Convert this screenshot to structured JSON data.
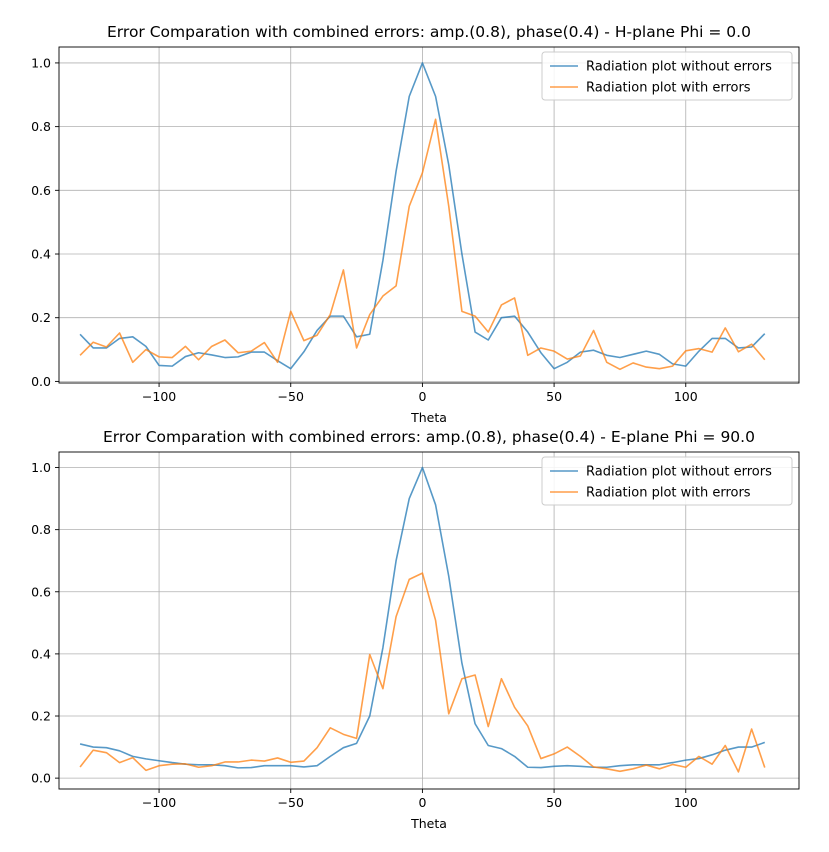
{
  "chart_data": [
    {
      "type": "line",
      "title": "Error Comparation with combined errors: amp.(0.8), phase(0.4) - H-plane Phi = 0.0",
      "xlabel": "Theta",
      "ylabel": "",
      "xlim": [
        -138,
        143
      ],
      "ylim": [
        -0.005,
        1.05
      ],
      "xticks": [
        -100,
        -50,
        0,
        50,
        100
      ],
      "xtick_labels": [
        "−100",
        "−50",
        "0",
        "50",
        "100"
      ],
      "yticks": [
        0.0,
        0.2,
        0.4,
        0.6,
        0.8,
        1.0
      ],
      "ytick_labels": [
        "0.0",
        "0.2",
        "0.4",
        "0.6",
        "0.8",
        "1.0"
      ],
      "grid": true,
      "legend_position": "top-right",
      "x": [
        -130,
        -125,
        -120,
        -115,
        -110,
        -105,
        -100,
        -95,
        -90,
        -85,
        -80,
        -75,
        -70,
        -65,
        -60,
        -55,
        -50,
        -45,
        -40,
        -35,
        -30,
        -25,
        -20,
        -15,
        -10,
        -5,
        0,
        5,
        10,
        15,
        20,
        25,
        30,
        35,
        40,
        45,
        50,
        55,
        60,
        65,
        70,
        75,
        80,
        85,
        90,
        95,
        100,
        105,
        110,
        115,
        120,
        125,
        130
      ],
      "series": [
        {
          "name": "Radiation plot without errors",
          "color": "#1f77b4",
          "values": [
            0.148,
            0.105,
            0.105,
            0.135,
            0.14,
            0.11,
            0.05,
            0.048,
            0.078,
            0.09,
            0.083,
            0.075,
            0.077,
            0.092,
            0.092,
            0.065,
            0.04,
            0.093,
            0.16,
            0.205,
            0.205,
            0.14,
            0.148,
            0.38,
            0.66,
            0.895,
            1.0,
            0.895,
            0.68,
            0.4,
            0.155,
            0.13,
            0.2,
            0.205,
            0.155,
            0.09,
            0.04,
            0.06,
            0.092,
            0.098,
            0.082,
            0.075,
            0.085,
            0.095,
            0.085,
            0.055,
            0.048,
            0.095,
            0.135,
            0.135,
            0.105,
            0.108,
            0.15
          ]
        },
        {
          "name": "Radiation plot with errors",
          "color": "#ff7f0e",
          "values": [
            0.082,
            0.123,
            0.108,
            0.152,
            0.06,
            0.1,
            0.077,
            0.075,
            0.11,
            0.068,
            0.11,
            0.13,
            0.09,
            0.095,
            0.122,
            0.06,
            0.22,
            0.128,
            0.145,
            0.21,
            0.35,
            0.105,
            0.21,
            0.268,
            0.3,
            0.55,
            0.655,
            0.823,
            0.55,
            0.22,
            0.205,
            0.155,
            0.24,
            0.262,
            0.082,
            0.105,
            0.095,
            0.07,
            0.08,
            0.16,
            0.06,
            0.038,
            0.058,
            0.045,
            0.04,
            0.048,
            0.096,
            0.103,
            0.092,
            0.168,
            0.093,
            0.117,
            0.068
          ]
        }
      ]
    },
    {
      "type": "line",
      "title": "Error Comparation with combined errors: amp.(0.8), phase(0.4) - E-plane Phi = 90.0",
      "xlabel": "Theta",
      "ylabel": "",
      "xlim": [
        -138,
        143
      ],
      "ylim": [
        -0.035,
        1.05
      ],
      "xticks": [
        -100,
        -50,
        0,
        50,
        100
      ],
      "xtick_labels": [
        "−100",
        "−50",
        "0",
        "50",
        "100"
      ],
      "yticks": [
        0.0,
        0.2,
        0.4,
        0.6,
        0.8,
        1.0
      ],
      "ytick_labels": [
        "0.0",
        "0.2",
        "0.4",
        "0.6",
        "0.8",
        "1.0"
      ],
      "grid": true,
      "legend_position": "top-right",
      "x": [
        -130,
        -125,
        -120,
        -115,
        -110,
        -105,
        -100,
        -95,
        -90,
        -85,
        -80,
        -75,
        -70,
        -65,
        -60,
        -55,
        -50,
        -45,
        -40,
        -35,
        -30,
        -25,
        -20,
        -15,
        -10,
        -5,
        0,
        5,
        10,
        15,
        20,
        25,
        30,
        35,
        40,
        45,
        50,
        55,
        60,
        65,
        70,
        75,
        80,
        85,
        90,
        95,
        100,
        105,
        110,
        115,
        120,
        125,
        130
      ],
      "series": [
        {
          "name": "Radiation plot without errors",
          "color": "#1f77b4",
          "values": [
            0.11,
            0.1,
            0.098,
            0.088,
            0.07,
            0.062,
            0.056,
            0.05,
            0.045,
            0.043,
            0.043,
            0.04,
            0.033,
            0.034,
            0.04,
            0.04,
            0.04,
            0.036,
            0.04,
            0.07,
            0.098,
            0.112,
            0.2,
            0.42,
            0.7,
            0.9,
            1.0,
            0.88,
            0.65,
            0.37,
            0.175,
            0.105,
            0.095,
            0.07,
            0.035,
            0.034,
            0.038,
            0.04,
            0.038,
            0.035,
            0.035,
            0.04,
            0.043,
            0.043,
            0.043,
            0.05,
            0.058,
            0.063,
            0.075,
            0.09,
            0.1,
            0.1,
            0.115
          ]
        },
        {
          "name": "Radiation plot with errors",
          "color": "#ff7f0e",
          "values": [
            0.036,
            0.09,
            0.082,
            0.05,
            0.066,
            0.025,
            0.04,
            0.045,
            0.046,
            0.035,
            0.04,
            0.052,
            0.052,
            0.058,
            0.055,
            0.065,
            0.051,
            0.055,
            0.098,
            0.162,
            0.141,
            0.128,
            0.398,
            0.288,
            0.52,
            0.64,
            0.66,
            0.508,
            0.207,
            0.32,
            0.332,
            0.166,
            0.32,
            0.228,
            0.168,
            0.063,
            0.078,
            0.1,
            0.07,
            0.036,
            0.03,
            0.022,
            0.03,
            0.042,
            0.03,
            0.044,
            0.035,
            0.07,
            0.045,
            0.105,
            0.02,
            0.158,
            0.034
          ]
        }
      ]
    }
  ]
}
